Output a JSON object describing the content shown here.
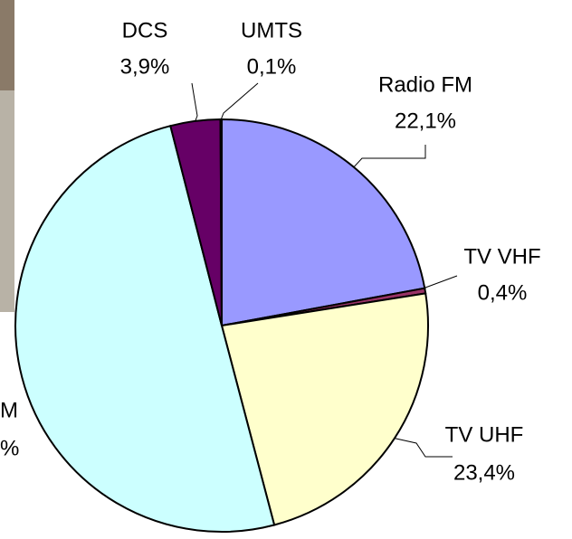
{
  "chart_data": {
    "type": "pie",
    "categories": [
      "Radio FM",
      "TV VHF",
      "TV UHF",
      "M",
      "DCS",
      "UMTS"
    ],
    "values": [
      22.1,
      0.4,
      23.4,
      50.1,
      3.9,
      0.1
    ],
    "value_labels": [
      "22,1%",
      "0,4%",
      "23,4%",
      "%",
      "3,9%",
      "0,1%"
    ],
    "colors": [
      "#9999ff",
      "#993366",
      "#ffffcc",
      "#ccffff",
      "#660066",
      "#0066cc"
    ]
  }
}
